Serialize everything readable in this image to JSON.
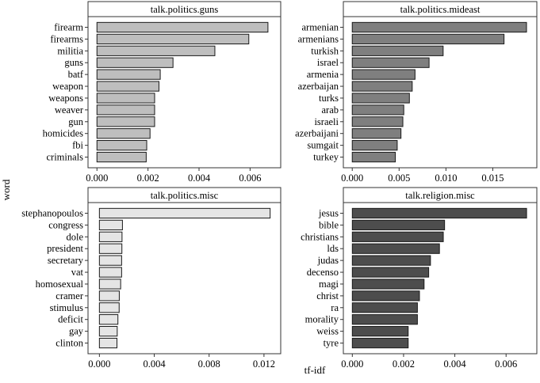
{
  "chart_data": {
    "type": "bar",
    "orientation": "horizontal",
    "xlabel": "tf-idf",
    "ylabel": "word",
    "panels": [
      {
        "title": "talk.politics.guns",
        "color": "#bebebe",
        "xlim": [
          -0.00035,
          0.0072
        ],
        "xticks": [
          0.0,
          0.002,
          0.004,
          0.006
        ],
        "xtick_labels": [
          "0.000",
          "0.002",
          "0.004",
          "0.006"
        ],
        "categories": [
          "firearm",
          "firearms",
          "militia",
          "guns",
          "batf",
          "weapon",
          "weapons",
          "weaver",
          "gun",
          "homicides",
          "fbi",
          "criminals"
        ],
        "values": [
          0.0067,
          0.00595,
          0.00462,
          0.00298,
          0.00248,
          0.00243,
          0.00226,
          0.00226,
          0.00226,
          0.00208,
          0.00195,
          0.00193
        ]
      },
      {
        "title": "talk.politics.mideast",
        "color": "#7f7f7f",
        "xlim": [
          -0.00095,
          0.0197
        ],
        "xticks": [
          0.0,
          0.005,
          0.01,
          0.015
        ],
        "xtick_labels": [
          "0.000",
          "0.005",
          "0.010",
          "0.015"
        ],
        "categories": [
          "armenian",
          "armenians",
          "turkish",
          "israel",
          "armenia",
          "azerbaijan",
          "turks",
          "arab",
          "israeli",
          "azerbaijani",
          "sumgait",
          "turkey"
        ],
        "values": [
          0.0186,
          0.0162,
          0.0097,
          0.0082,
          0.0067,
          0.0064,
          0.0061,
          0.0055,
          0.0054,
          0.0052,
          0.0048,
          0.0046
        ]
      },
      {
        "title": "talk.politics.misc",
        "color": "#e5e5e5",
        "xlim": [
          -0.00083,
          0.01322
        ],
        "xticks": [
          0.0,
          0.004,
          0.008,
          0.012
        ],
        "xtick_labels": [
          "0.000",
          "0.004",
          "0.008",
          "0.012"
        ],
        "categories": [
          "stephanopoulos",
          "congress",
          "dole",
          "president",
          "secretary",
          "vat",
          "homosexual",
          "cramer",
          "stimulus",
          "deficit",
          "gay",
          "clinton"
        ],
        "values": [
          0.01245,
          0.00168,
          0.00165,
          0.00164,
          0.00162,
          0.00162,
          0.00155,
          0.00145,
          0.00144,
          0.00135,
          0.0013,
          0.00128
        ]
      },
      {
        "title": "talk.religion.misc",
        "color": "#4d4d4d",
        "xlim": [
          -0.00035,
          0.0072
        ],
        "xticks": [
          0.0,
          0.002,
          0.004,
          0.006
        ],
        "xtick_labels": [
          "0.000",
          "0.002",
          "0.004",
          "0.006"
        ],
        "categories": [
          "jesus",
          "bible",
          "christians",
          "lds",
          "judas",
          "decenso",
          "magi",
          "christ",
          "ra",
          "morality",
          "weiss",
          "tyre"
        ],
        "values": [
          0.0068,
          0.0036,
          0.00355,
          0.0034,
          0.00305,
          0.00298,
          0.0028,
          0.00262,
          0.00254,
          0.00254,
          0.00218,
          0.00218
        ]
      }
    ]
  }
}
